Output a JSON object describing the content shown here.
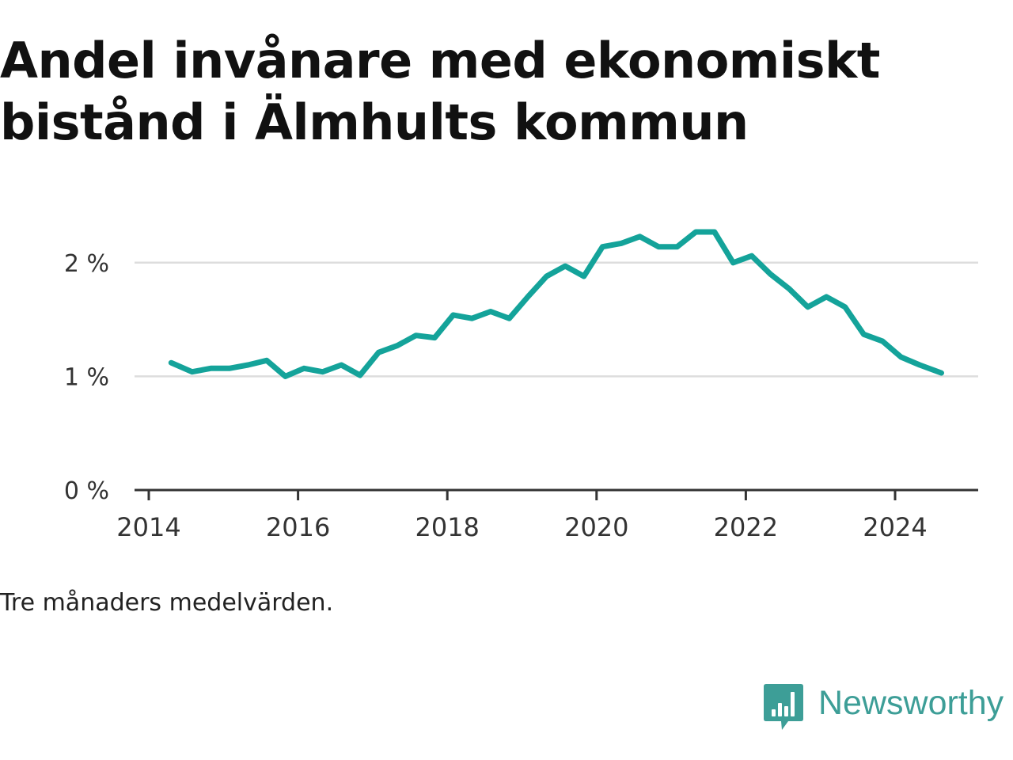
{
  "title": "Andel invånare med ekonomiskt bistånd i Älmhults kommun",
  "caption": "Tre månaders medelvärden.",
  "brand": {
    "name": "Newsworthy",
    "icon": "chat-bar-chart-icon",
    "color": "#3d9e97"
  },
  "chart_data": {
    "type": "line",
    "title": "Andel invånare med ekonomiskt bistånd i Älmhults kommun",
    "xlabel": "",
    "ylabel": "",
    "xlim": [
      2014,
      2025.1
    ],
    "ylim": [
      0,
      2.5
    ],
    "x_ticks": [
      2014,
      2016,
      2018,
      2020,
      2022,
      2024
    ],
    "y_ticks": [
      {
        "value": 0,
        "label": "0 %"
      },
      {
        "value": 1,
        "label": "1 %"
      },
      {
        "value": 2,
        "label": "2 %"
      }
    ],
    "grid": true,
    "line_color": "#14a39a",
    "series": [
      {
        "x": [
          2014.3,
          2014.58,
          2014.83,
          2015.08,
          2015.33,
          2015.58,
          2015.83,
          2016.08,
          2016.33,
          2016.58,
          2016.83,
          2017.08,
          2017.33,
          2017.58,
          2017.83,
          2018.08,
          2018.33,
          2018.58,
          2018.83,
          2019.08,
          2019.33,
          2019.58,
          2019.83,
          2020.08,
          2020.33,
          2020.58,
          2020.83,
          2021.08,
          2021.33,
          2021.58,
          2021.83,
          2022.08,
          2022.33,
          2022.58,
          2022.83,
          2023.08,
          2023.33,
          2023.58,
          2023.83,
          2024.08,
          2024.33,
          2024.62
        ],
        "values": [
          1.12,
          1.04,
          1.07,
          1.07,
          1.1,
          1.14,
          1.0,
          1.07,
          1.04,
          1.1,
          1.01,
          1.21,
          1.27,
          1.36,
          1.34,
          1.54,
          1.51,
          1.57,
          1.51,
          1.7,
          1.88,
          1.97,
          1.88,
          2.14,
          2.17,
          2.23,
          2.14,
          2.14,
          2.27,
          2.27,
          2.0,
          2.06,
          1.9,
          1.77,
          1.61,
          1.7,
          1.61,
          1.37,
          1.31,
          1.17,
          1.1,
          1.03
        ]
      }
    ]
  }
}
